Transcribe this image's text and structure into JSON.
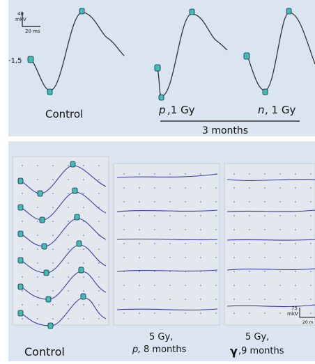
{
  "top_panel": {
    "scale_bar": {
      "amplitude": "40",
      "unit": "mkV",
      "time": "20 ms"
    },
    "baseline_label": "-1,5",
    "labels": {
      "control": "Control",
      "p_dose": {
        "particle": "p",
        "dose": ",1 Gy"
      },
      "n_dose": {
        "particle": "n",
        "dose": ", 1 Gy"
      },
      "period": "3 months"
    }
  },
  "bottom_panel": {
    "labels": {
      "control": "Control",
      "p_group": {
        "dose": "5 Gy,",
        "particle": "p,",
        "period": " 8 months"
      },
      "g_group": {
        "dose": "5 Gy,",
        "particle": "γ",
        "period": ",9 months"
      }
    },
    "scale_bar": {
      "amplitude": "75",
      "unit": "mkV",
      "time": "20 m"
    }
  }
}
